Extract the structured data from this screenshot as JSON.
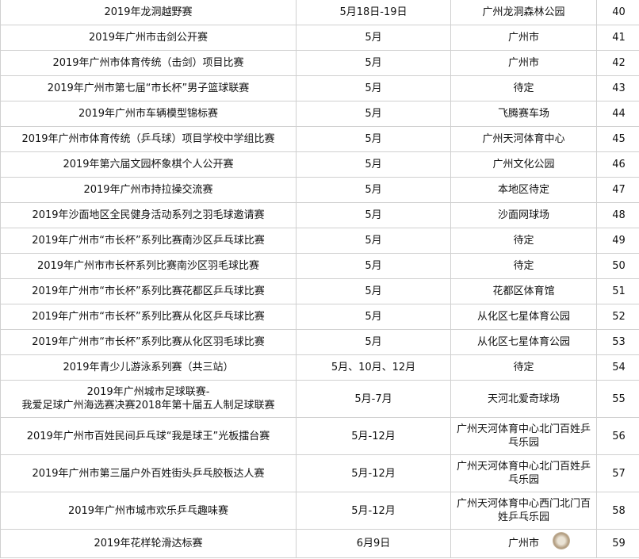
{
  "rows": [
    {
      "name": "2019年龙洞越野赛",
      "time": "5月18日-19日",
      "venue": "广州龙洞森林公园",
      "no": "40"
    },
    {
      "name": "2019年广州市击剑公开赛",
      "time": "5月",
      "venue": "广州市",
      "no": "41"
    },
    {
      "name": "2019年广州市体育传统（击剑）项目比赛",
      "time": "5月",
      "venue": "广州市",
      "no": "42"
    },
    {
      "name": "2019年广州市第七届“市长杯”男子篮球联赛",
      "time": "5月",
      "venue": "待定",
      "no": "43"
    },
    {
      "name": "2019年广州市车辆模型锦标赛",
      "time": "5月",
      "venue": "飞腾赛车场",
      "no": "44"
    },
    {
      "name": "2019年广州市体育传统（乒乓球）项目学校中学组比赛",
      "time": "5月",
      "venue": "广州天河体育中心",
      "no": "45"
    },
    {
      "name": "2019年第六届文园杯象棋个人公开赛",
      "time": "5月",
      "venue": "广州文化公园",
      "no": "46"
    },
    {
      "name": "2019年广州市持拉操交流赛",
      "time": "5月",
      "venue": "本地区待定",
      "no": "47"
    },
    {
      "name": "2019年沙面地区全民健身活动系列之羽毛球邀请赛",
      "time": "5月",
      "venue": "沙面网球场",
      "no": "48"
    },
    {
      "name": "2019年广州市“市长杯”系列比赛南沙区乒乓球比赛",
      "time": "5月",
      "venue": "待定",
      "no": "49"
    },
    {
      "name": "2019年广州市市长杯系列比赛南沙区羽毛球比赛",
      "time": "5月",
      "venue": "待定",
      "no": "50"
    },
    {
      "name": "2019年广州市“市长杯”系列比赛花都区乒乓球比赛",
      "time": "5月",
      "venue": "花都区体育馆",
      "no": "51"
    },
    {
      "name": "2019年广州市“市长杯”系列比赛从化区乒乓球比赛",
      "time": "5月",
      "venue": "从化区七星体育公园",
      "no": "52"
    },
    {
      "name": "2019年广州市“市长杯”系列比赛从化区羽毛球比赛",
      "time": "5月",
      "venue": "从化区七星体育公园",
      "no": "53"
    },
    {
      "name": "2019年青少儿游泳系列赛（共三站）",
      "time": "5月、10月、12月",
      "venue": "待定",
      "no": "54"
    },
    {
      "name": "2019年广州城市足球联赛-\n我爱足球广州海选赛决赛2018年第十届五人制足球联赛",
      "time": "5月-7月",
      "venue": "天河北爱奇球场",
      "no": "55"
    },
    {
      "name": "2019年广州市百姓民间乒乓球“我是球王”光板擂台赛",
      "time": "5月-12月",
      "venue": "广州天河体育中心北门百姓乒乓乐园",
      "no": "56"
    },
    {
      "name": "2019年广州市第三届户外百姓街头乒乓胶板达人赛",
      "time": "5月-12月",
      "venue": "广州天河体育中心北门百姓乒乓乐园",
      "no": "57"
    },
    {
      "name": "2019年广州市城市欢乐乒乓趣味赛",
      "time": "5月-12月",
      "venue": "广州天河体育中心西门北门百姓乒乓乐园",
      "no": "58"
    },
    {
      "name": "2019年花样轮滑达标赛",
      "time": "6月9日",
      "venue": "广州市",
      "no": "59"
    }
  ]
}
